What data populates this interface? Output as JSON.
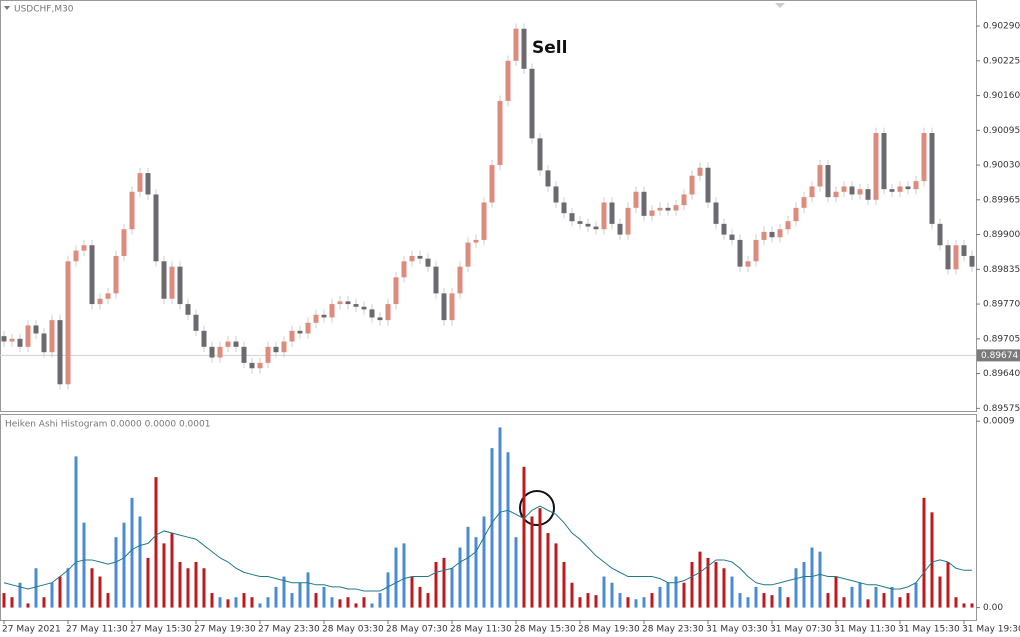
{
  "chart_data": [
    {
      "type": "candlestick",
      "title": "USDCHF,M30",
      "annotation": "Sell",
      "categories": [
        "27 May 2021",
        null,
        null,
        null,
        null,
        null,
        null,
        null,
        "27 May 11:30",
        null,
        null,
        null,
        null,
        null,
        null,
        null,
        "27 May 15:30",
        null,
        null,
        null,
        null,
        null,
        null,
        null,
        "27 May 19:30",
        null,
        null,
        null,
        null,
        null,
        null,
        null,
        "27 May 23:30",
        null,
        null,
        null,
        null,
        null,
        null,
        null,
        "28 May 03:30",
        null,
        null,
        null,
        null,
        null,
        null,
        null,
        "28 May 07:30",
        null,
        null,
        null,
        null,
        null,
        null,
        null,
        "28 May 11:30",
        null,
        null,
        null,
        null,
        null,
        null,
        null,
        "28 May 15:30",
        null,
        null,
        null,
        null,
        null,
        null,
        null,
        "28 May 19:30",
        null,
        null,
        null,
        null,
        null,
        null,
        null,
        "28 May 23:30",
        null,
        null,
        null,
        null,
        null,
        null,
        null,
        "31 May 03:30",
        null,
        null,
        null,
        null,
        null,
        null,
        null,
        "31 May 07:30",
        null,
        null,
        null,
        null,
        null,
        null,
        null,
        "31 May 11:30",
        null,
        null,
        null,
        null,
        null,
        null,
        null,
        "31 May 15:30",
        null,
        null,
        null,
        null,
        null,
        null,
        null,
        "31 May 19:30",
        null
      ],
      "open": [
        0.8971,
        0.897,
        0.89705,
        0.8969,
        0.8973,
        0.89715,
        0.8968,
        0.8974,
        0.8962,
        0.8985,
        0.8987,
        0.8988,
        0.8977,
        0.8978,
        0.8979,
        0.8986,
        0.8991,
        0.8998,
        0.90015,
        0.89975,
        0.8985,
        0.8978,
        0.8984,
        0.8977,
        0.8975,
        0.8972,
        0.8969,
        0.8967,
        0.8969,
        0.897,
        0.8969,
        0.8966,
        0.8965,
        0.8966,
        0.8969,
        0.8968,
        0.897,
        0.8972,
        0.89715,
        0.89735,
        0.8975,
        0.89745,
        0.8977,
        0.89775,
        0.8977,
        0.89765,
        0.8976,
        0.89745,
        0.8974,
        0.8977,
        0.8982,
        0.8985,
        0.8986,
        0.89855,
        0.8984,
        0.8979,
        0.8974,
        0.8979,
        0.8984,
        0.89885,
        0.8989,
        0.8996,
        0.9003,
        0.9015,
        0.90225,
        0.90285,
        0.9021,
        0.9008,
        0.9002,
        0.8999,
        0.8996,
        0.8994,
        0.89925,
        0.8992,
        0.89915,
        0.8991,
        0.8996,
        0.8992,
        0.899,
        0.8995,
        0.8998,
        0.89935,
        0.89945,
        0.8995,
        0.89945,
        0.89955,
        0.89975,
        0.9001,
        0.90025,
        0.8996,
        0.8992,
        0.899,
        0.8989,
        0.8984,
        0.8985,
        0.8989,
        0.89905,
        0.89895,
        0.8991,
        0.89925,
        0.8995,
        0.8997,
        0.8999,
        0.9003,
        0.8997,
        0.8998,
        0.8999,
        0.89975,
        0.89985,
        0.89965,
        0.9009,
        0.89985,
        0.8998,
        0.8999,
        0.89985,
        0.9,
        0.9009,
        0.8992,
        0.8988,
        0.89835,
        0.8988,
        0.8986
      ],
      "high": [
        0.8972,
        0.89715,
        0.89715,
        0.8974,
        0.8974,
        0.89725,
        0.8975,
        0.8975,
        0.8986,
        0.8988,
        0.8989,
        0.8989,
        0.8979,
        0.898,
        0.8987,
        0.8992,
        0.8999,
        0.90025,
        0.90025,
        0.89985,
        0.8986,
        0.8985,
        0.8985,
        0.8978,
        0.8976,
        0.8973,
        0.897,
        0.897,
        0.8971,
        0.8971,
        0.897,
        0.8967,
        0.8967,
        0.897,
        0.897,
        0.8971,
        0.8973,
        0.8973,
        0.89745,
        0.8976,
        0.8976,
        0.8978,
        0.89785,
        0.89785,
        0.8978,
        0.89775,
        0.8977,
        0.89755,
        0.8978,
        0.8983,
        0.8986,
        0.8987,
        0.8987,
        0.89865,
        0.8985,
        0.898,
        0.898,
        0.8985,
        0.89895,
        0.899,
        0.8997,
        0.9004,
        0.9016,
        0.90235,
        0.90295,
        0.90295,
        0.9022,
        0.9009,
        0.9003,
        0.9,
        0.8997,
        0.8995,
        0.89935,
        0.8993,
        0.89925,
        0.8997,
        0.8997,
        0.8993,
        0.8996,
        0.8999,
        0.8999,
        0.89955,
        0.8996,
        0.8996,
        0.89965,
        0.89985,
        0.9002,
        0.90035,
        0.90035,
        0.8997,
        0.8993,
        0.8991,
        0.899,
        0.8986,
        0.899,
        0.89915,
        0.89915,
        0.8992,
        0.89935,
        0.8996,
        0.8998,
        0.9,
        0.9004,
        0.9004,
        0.8999,
        0.9,
        0.9,
        0.89995,
        0.89995,
        0.901,
        0.901,
        0.89995,
        0.9,
        0.9,
        0.9001,
        0.901,
        0.901,
        0.8993,
        0.8989,
        0.8989,
        0.8989,
        0.8987
      ],
      "low": [
        0.8969,
        0.8969,
        0.8968,
        0.8968,
        0.89705,
        0.8967,
        0.8967,
        0.8961,
        0.8961,
        0.8984,
        0.8986,
        0.8976,
        0.8976,
        0.8977,
        0.8978,
        0.8985,
        0.899,
        0.8997,
        0.89965,
        0.8984,
        0.8977,
        0.8977,
        0.8976,
        0.8974,
        0.8971,
        0.8968,
        0.8966,
        0.8966,
        0.8968,
        0.8968,
        0.8965,
        0.8964,
        0.8964,
        0.8965,
        0.8967,
        0.8967,
        0.8969,
        0.89705,
        0.89705,
        0.89725,
        0.89735,
        0.89735,
        0.8976,
        0.8976,
        0.89755,
        0.8975,
        0.89735,
        0.8973,
        0.8973,
        0.8976,
        0.8981,
        0.8984,
        0.89845,
        0.8983,
        0.8978,
        0.8973,
        0.8973,
        0.8978,
        0.8983,
        0.89875,
        0.8988,
        0.8995,
        0.9002,
        0.9014,
        0.90215,
        0.902,
        0.9007,
        0.9001,
        0.8998,
        0.8995,
        0.8993,
        0.89915,
        0.8991,
        0.89905,
        0.899,
        0.899,
        0.8991,
        0.8989,
        0.8989,
        0.8994,
        0.89925,
        0.89925,
        0.89935,
        0.89935,
        0.89935,
        0.89945,
        0.89965,
        0.9,
        0.8995,
        0.8991,
        0.8989,
        0.8988,
        0.8983,
        0.8983,
        0.8984,
        0.8988,
        0.89885,
        0.89885,
        0.899,
        0.89915,
        0.8994,
        0.8996,
        0.8998,
        0.8996,
        0.8996,
        0.8997,
        0.89965,
        0.89965,
        0.89955,
        0.89955,
        0.89975,
        0.8997,
        0.8997,
        0.89975,
        0.89975,
        0.8999,
        0.8991,
        0.8987,
        0.89825,
        0.89825,
        0.8985,
        0.8983
      ],
      "close": [
        0.897,
        0.89705,
        0.8969,
        0.8973,
        0.89715,
        0.8968,
        0.8974,
        0.8962,
        0.8985,
        0.8987,
        0.8988,
        0.8977,
        0.8978,
        0.8979,
        0.8986,
        0.8991,
        0.8998,
        0.90015,
        0.89975,
        0.8985,
        0.8978,
        0.8984,
        0.8977,
        0.8975,
        0.8972,
        0.8969,
        0.8967,
        0.8969,
        0.897,
        0.8969,
        0.8966,
        0.8965,
        0.8966,
        0.8969,
        0.8968,
        0.897,
        0.8972,
        0.89715,
        0.89735,
        0.8975,
        0.89745,
        0.8977,
        0.89775,
        0.8977,
        0.89765,
        0.8976,
        0.89745,
        0.8974,
        0.8977,
        0.8982,
        0.8985,
        0.8986,
        0.89855,
        0.8984,
        0.8979,
        0.8974,
        0.8979,
        0.8984,
        0.89885,
        0.8989,
        0.8996,
        0.9003,
        0.9015,
        0.90225,
        0.90285,
        0.9021,
        0.9008,
        0.9002,
        0.8999,
        0.8996,
        0.8994,
        0.89925,
        0.8992,
        0.89915,
        0.8991,
        0.8996,
        0.8992,
        0.899,
        0.8995,
        0.8998,
        0.89935,
        0.89945,
        0.8995,
        0.89945,
        0.89955,
        0.89975,
        0.9001,
        0.90025,
        0.8996,
        0.8992,
        0.899,
        0.8989,
        0.8984,
        0.8985,
        0.8989,
        0.89905,
        0.89895,
        0.8991,
        0.89925,
        0.8995,
        0.8997,
        0.8999,
        0.9003,
        0.8997,
        0.8998,
        0.8999,
        0.89975,
        0.89985,
        0.89965,
        0.9009,
        0.89985,
        0.8998,
        0.8999,
        0.89985,
        0.9,
        0.9009,
        0.8992,
        0.8988,
        0.89835,
        0.8988,
        0.8986,
        0.8984
      ],
      "up_color": "#de8b7d",
      "down_color": "#6a6a70",
      "ylim": [
        0.8957,
        0.90335
      ],
      "yticks": [
        {
          "value": 0.9029,
          "label": "0.90290"
        },
        0.90225,
        {
          "value": 0.9016,
          "label": "0.90160"
        },
        0.90095,
        {
          "value": 0.9003,
          "label": "0.90030"
        },
        0.89965,
        {
          "value": 0.899,
          "label": "0.89900"
        },
        0.89835,
        {
          "value": 0.8977,
          "label": "0.89770"
        },
        0.89705,
        {
          "value": 0.8964,
          "label": "0.89640"
        },
        0.89575
      ],
      "current_price": 0.89674
    },
    {
      "type": "bar",
      "title": "Heiken Ashi Histogram 0.0000 0.0000 0.0001",
      "series": [
        {
          "color": "#4a8bd1",
          "values": [
            null,
            null,
            0.00012,
            null,
            0.00019,
            null,
            0.00012,
            null,
            0.00019,
            0.00073,
            0.00041,
            null,
            null,
            null,
            0.00034,
            0.00041,
            0.00053,
            0.00044,
            null,
            null,
            null,
            null,
            null,
            null,
            null,
            null,
            null,
            5e-05,
            null,
            5e-05,
            null,
            null,
            2e-05,
            5e-05,
            0.0001,
            0.00015,
            7e-05,
            0.00012,
            0.00017,
            null,
            0.0001,
            5e-05,
            null,
            null,
            null,
            null,
            2e-05,
            7e-05,
            0.00017,
            0.00029,
            0.00031,
            null,
            null,
            null,
            null,
            null,
            0.00019,
            0.00029,
            0.00039,
            0.00034,
            0.00044,
            0.00077,
            0.00087,
            0.00075,
            0.00034,
            null,
            null,
            null,
            null,
            null,
            null,
            null,
            null,
            null,
            null,
            0.00015,
            0.00012,
            7e-05,
            null,
            4e-05,
            5e-05,
            null,
            0.0001,
            0.00012,
            0.00015,
            null,
            null,
            null,
            null,
            null,
            null,
            0.00015,
            7e-05,
            5e-05,
            0.0001,
            null,
            null,
            0.0001,
            null,
            0.00019,
            0.00022,
            0.00029,
            0.00027,
            null,
            null,
            null,
            0.0001,
            0.00012,
            null,
            0.0001,
            null,
            0.0001,
            null,
            null,
            0.00012,
            null,
            null,
            null,
            null,
            null,
            null,
            null
          ]
        },
        {
          "color": "#c0171b",
          "values": [
            7e-05,
            5e-05,
            null,
            2e-05,
            null,
            5e-05,
            null,
            0.00015,
            null,
            null,
            null,
            0.00019,
            0.00015,
            7e-05,
            null,
            null,
            null,
            null,
            0.00024,
            0.00063,
            0.00031,
            0.00036,
            0.00022,
            0.00019,
            0.00022,
            0.00019,
            7e-05,
            null,
            4e-05,
            null,
            7e-05,
            5e-05,
            null,
            null,
            null,
            null,
            null,
            null,
            null,
            7e-05,
            null,
            null,
            4e-05,
            5e-05,
            2e-05,
            5e-05,
            null,
            null,
            null,
            null,
            null,
            0.00015,
            0.0001,
            7e-05,
            0.00022,
            0.00024,
            null,
            null,
            null,
            null,
            null,
            null,
            null,
            null,
            null,
            0.00068,
            0.00044,
            0.00048,
            0.00036,
            0.00031,
            0.00022,
            0.00012,
            5e-05,
            7e-05,
            6e-05,
            null,
            null,
            null,
            5e-05,
            null,
            null,
            7e-05,
            null,
            null,
            null,
            0.00012,
            0.00022,
            0.00027,
            0.00024,
            0.00022,
            0.00019,
            null,
            null,
            null,
            null,
            7e-05,
            6e-05,
            null,
            5e-05,
            null,
            null,
            null,
            null,
            7e-05,
            0.00015,
            5e-05,
            null,
            null,
            4e-05,
            null,
            7e-05,
            null,
            5e-05,
            7e-05,
            null,
            0.00053,
            0.00046,
            0.00015,
            0.00022,
            5e-05,
            2e-05,
            2e-05
          ]
        }
      ],
      "signal": {
        "color": "#1f7a8c",
        "values": [
          0.00012,
          0.00011,
          0.0001,
          9e-05,
          0.0001,
          0.00011,
          0.00012,
          0.00015,
          0.00018,
          0.00022,
          0.00023,
          0.00023,
          0.00022,
          0.00021,
          0.00022,
          0.00024,
          0.00028,
          0.0003,
          0.00031,
          0.00035,
          0.00037,
          0.00036,
          0.00035,
          0.00034,
          0.00033,
          0.0003,
          0.00027,
          0.00024,
          0.00022,
          0.00019,
          0.00017,
          0.00016,
          0.00015,
          0.00015,
          0.00014,
          0.00013,
          0.00012,
          0.00012,
          0.00012,
          0.00011,
          0.00011,
          0.0001,
          0.0001,
          9e-05,
          9e-05,
          8e-05,
          8e-05,
          8e-05,
          0.0001,
          0.00012,
          0.00014,
          0.00015,
          0.00015,
          0.00015,
          0.00017,
          0.00018,
          0.00019,
          0.00022,
          0.00024,
          0.00027,
          0.00034,
          0.00041,
          0.00046,
          0.00047,
          0.00045,
          0.00043,
          0.00047,
          0.00049,
          0.00047,
          0.00045,
          0.00041,
          0.00036,
          0.00033,
          0.00029,
          0.00025,
          0.00022,
          0.00019,
          0.00017,
          0.00015,
          0.00015,
          0.00015,
          0.00015,
          0.00014,
          0.00012,
          0.00012,
          0.00013,
          0.00015,
          0.00017,
          0.0002,
          0.00023,
          0.00023,
          0.00022,
          0.00019,
          0.00015,
          0.00012,
          0.00011,
          0.00011,
          0.00012,
          0.00013,
          0.00014,
          0.00015,
          0.00015,
          0.00016,
          0.00015,
          0.00015,
          0.00014,
          0.00013,
          0.00012,
          0.00011,
          0.00011,
          0.0001,
          9e-05,
          9e-05,
          0.0001,
          0.00012,
          0.00017,
          0.00022,
          0.00023,
          0.00022,
          0.00019,
          0.00018,
          0.00018
        ]
      },
      "ylim": [
        -6e-05,
        0.00093
      ],
      "yticks": [
        0.0009,
        {
          "value": 0,
          "label": "0.00"
        }
      ]
    }
  ]
}
